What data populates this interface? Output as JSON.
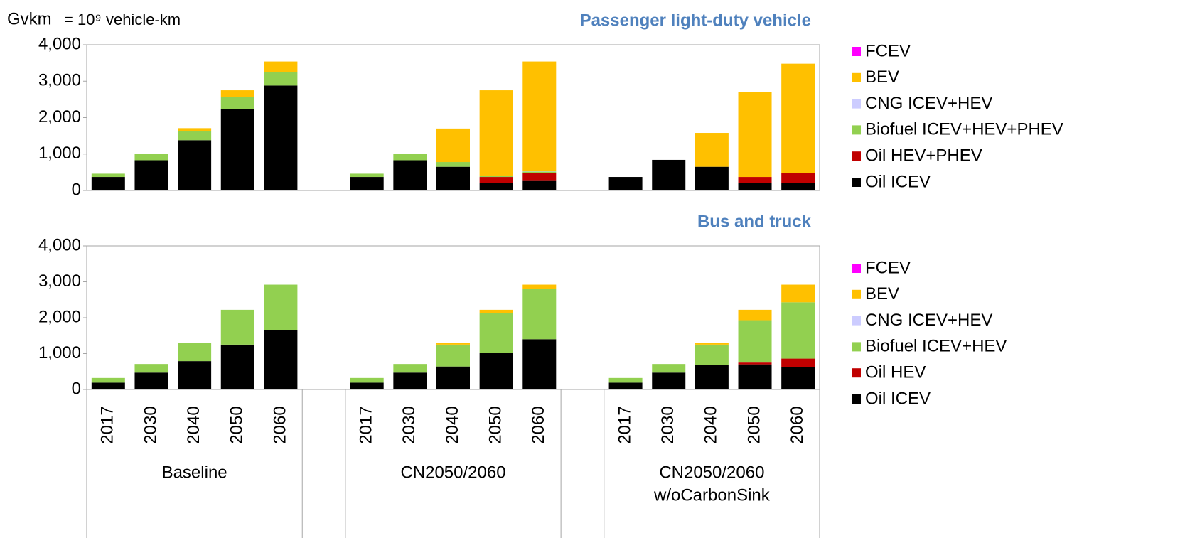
{
  "chart_data": [
    {
      "type": "stacked_bar",
      "title": "Passenger light-duty vehicle",
      "ylabel": "Gvkm",
      "unit_note": "= 10⁹ vehicle-km",
      "ylim": [
        0,
        4000
      ],
      "yticks": [
        0,
        {
          "value": 1000,
          "label": "1,000"
        },
        {
          "value": 2000,
          "label": "2,000"
        },
        {
          "value": 3000,
          "label": "3,000"
        },
        {
          "value": 4000,
          "label": "4,000"
        }
      ],
      "series": [
        {
          "name": "Oil ICEV",
          "color": "#000000",
          "values": [
            370,
            830,
            1380,
            2230,
            2880,
            370,
            830,
            650,
            200,
            280,
            370,
            840,
            650,
            200,
            200
          ]
        },
        {
          "name": "Oil HEV+PHEV",
          "color": "#c00000",
          "values": [
            0,
            0,
            0,
            0,
            0,
            0,
            0,
            0,
            170,
            200,
            0,
            0,
            0,
            170,
            280
          ]
        },
        {
          "name": "Biofuel ICEV+HEV+PHEV",
          "color": "#92d050",
          "values": [
            90,
            180,
            250,
            330,
            370,
            90,
            180,
            130,
            30,
            40,
            0,
            0,
            0,
            0,
            0
          ]
        },
        {
          "name": "CNG ICEV+HEV",
          "color": "#ccccff",
          "values": [
            0,
            0,
            0,
            0,
            0,
            0,
            0,
            0,
            10,
            10,
            0,
            0,
            0,
            0,
            0
          ]
        },
        {
          "name": "BEV",
          "color": "#ffc000",
          "values": [
            0,
            0,
            80,
            190,
            290,
            0,
            0,
            920,
            2340,
            3010,
            0,
            0,
            930,
            2340,
            3000
          ]
        },
        {
          "name": "FCEV",
          "color": "#ff00ff",
          "values": [
            0,
            0,
            0,
            0,
            0,
            0,
            0,
            0,
            0,
            0,
            0,
            0,
            0,
            0,
            0
          ]
        }
      ]
    },
    {
      "type": "stacked_bar",
      "title": "Bus and truck",
      "categories": [
        "2017",
        "2030",
        "2040",
        "2050",
        "2060",
        "2017",
        "2030",
        "2040",
        "2050",
        "2060",
        "2017",
        "2030",
        "2040",
        "2050",
        "2060"
      ],
      "groups": [
        [
          "Baseline"
        ],
        [
          "CN2050/2060"
        ],
        [
          "CN2050/2060",
          "w/oCarbonSink"
        ]
      ],
      "ylim": [
        0,
        4000
      ],
      "yticks": [
        0,
        {
          "value": 1000,
          "label": "1,000"
        },
        {
          "value": 2000,
          "label": "2,000"
        },
        {
          "value": 3000,
          "label": "3,000"
        },
        {
          "value": 4000,
          "label": "4,000"
        }
      ],
      "series": [
        {
          "name": "Oil ICEV",
          "color": "#000000",
          "values": [
            190,
            470,
            790,
            1250,
            1660,
            190,
            470,
            640,
            1010,
            1400,
            190,
            470,
            690,
            700,
            620
          ]
        },
        {
          "name": "Oil HEV",
          "color": "#c00000",
          "values": [
            0,
            0,
            0,
            0,
            0,
            0,
            0,
            0,
            0,
            0,
            0,
            0,
            0,
            50,
            240
          ]
        },
        {
          "name": "Biofuel ICEV+HEV",
          "color": "#92d050",
          "values": [
            130,
            240,
            500,
            970,
            1260,
            130,
            240,
            610,
            1110,
            1400,
            130,
            240,
            560,
            1180,
            1570
          ]
        },
        {
          "name": "CNG ICEV+HEV",
          "color": "#ccccff",
          "values": [
            0,
            0,
            0,
            0,
            0,
            0,
            0,
            0,
            0,
            0,
            0,
            0,
            0,
            0,
            0
          ]
        },
        {
          "name": "BEV",
          "color": "#ffc000",
          "values": [
            0,
            0,
            0,
            0,
            0,
            0,
            0,
            50,
            100,
            120,
            0,
            0,
            50,
            290,
            490
          ]
        },
        {
          "name": "FCEV",
          "color": "#ff00ff",
          "values": [
            0,
            0,
            0,
            0,
            0,
            0,
            0,
            0,
            0,
            0,
            0,
            0,
            0,
            0,
            0
          ]
        }
      ]
    }
  ]
}
